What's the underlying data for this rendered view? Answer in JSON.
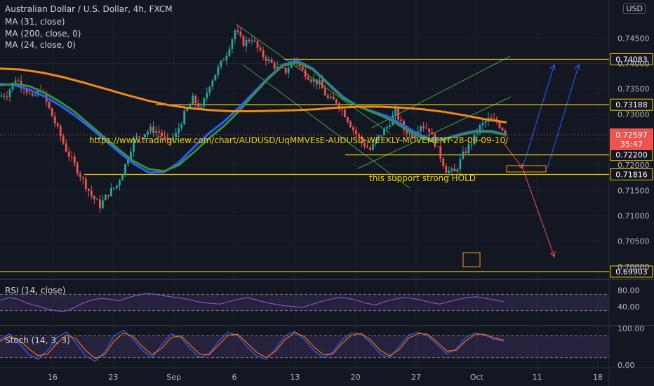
{
  "header": {
    "title": "Australian Dollar / U.S. Dollar, 4h, FXCM",
    "ma_lines": [
      "MA (31, close)",
      "MA (200, close, 0)",
      "MA (24, close, 0)"
    ],
    "currency": "USD"
  },
  "annotations": {
    "url_text": "https://www.tradingview.com/chart/AUDUSD/UqMMVEsE-AUDUSD-WEEKLY-MOVEMENT-28-09-09-10/",
    "support_text": "this support strong HOLD"
  },
  "chart_data": {
    "type": "line",
    "symbol": "AUDUSD",
    "timeframe": "4h",
    "ylim": [
      0.6975,
      0.7525
    ],
    "y_ticks": [
      0.745,
      0.74,
      0.735,
      0.73,
      0.725,
      0.72,
      0.715,
      0.71,
      0.705,
      0.7
    ],
    "x_ticks": [
      "16",
      "23",
      "Sep",
      "6",
      "13",
      "20",
      "27",
      "Oct",
      "11",
      "18"
    ],
    "last_price": 0.72597,
    "countdown": "35:47",
    "levels": [
      {
        "label": "0.74083",
        "value": 0.74083,
        "color": "#f0d000"
      },
      {
        "label": "0.73188",
        "value": 0.73188,
        "color": "#f0d000"
      },
      {
        "label": "0.72200",
        "value": 0.722,
        "color": "#f0d000"
      },
      {
        "label": "0.71816",
        "value": 0.71816,
        "color": "#f0d000"
      },
      {
        "label": "0.69903",
        "value": 0.69903,
        "color": "#f0d000"
      }
    ],
    "price_path": [
      0.7335,
      0.734,
      0.737,
      0.7355,
      0.733,
      0.735,
      0.731,
      0.727,
      0.723,
      0.72,
      0.717,
      0.714,
      0.712,
      0.7145,
      0.716,
      0.72,
      0.725,
      0.726,
      0.727,
      0.7265,
      0.7245,
      0.726,
      0.73,
      0.733,
      0.731,
      0.736,
      0.739,
      0.742,
      0.7465,
      0.744,
      0.745,
      0.742,
      0.7405,
      0.739,
      0.7385,
      0.741,
      0.7385,
      0.737,
      0.736,
      0.733,
      0.7325,
      0.73,
      0.727,
      0.7245,
      0.723,
      0.7255,
      0.7275,
      0.7305,
      0.727,
      0.726,
      0.728,
      0.727,
      0.723,
      0.719,
      0.7185,
      0.722,
      0.7245,
      0.7275,
      0.729,
      0.7285,
      0.7265
    ],
    "ma_series": [
      {
        "name": "MA (31, close)",
        "color": "#2962ff",
        "values": [
          0.736,
          0.7357,
          0.7348,
          0.7335,
          0.7318,
          0.7298,
          0.7275,
          0.725,
          0.7225,
          0.7202,
          0.7185,
          0.7186,
          0.7205,
          0.7235,
          0.7262,
          0.7285,
          0.7312,
          0.7342,
          0.7372,
          0.7398,
          0.7405,
          0.739,
          0.7362,
          0.7335,
          0.7316,
          0.7306,
          0.7296,
          0.728,
          0.7262,
          0.725,
          0.7253,
          0.7262,
          0.7268,
          0.7267,
          0.726
        ]
      },
      {
        "name": "MA (24, close, 0)",
        "color": "#388e3c",
        "values": [
          0.7357,
          0.736,
          0.7355,
          0.7342,
          0.7325,
          0.7305,
          0.728,
          0.7255,
          0.723,
          0.7207,
          0.7192,
          0.7188,
          0.72,
          0.7225,
          0.7252,
          0.7276,
          0.7305,
          0.7338,
          0.737,
          0.7396,
          0.7402,
          0.7388,
          0.736,
          0.7332,
          0.7316,
          0.7304,
          0.7292,
          0.7275,
          0.7258,
          0.7247,
          0.7251,
          0.726,
          0.7266,
          0.7265,
          0.7259
        ]
      },
      {
        "name": "MA (200, close, 0)",
        "color": "#ef8a1a",
        "values": [
          0.739,
          0.7388,
          0.7382,
          0.7373,
          0.7362,
          0.735,
          0.7338,
          0.7327,
          0.7318,
          0.7312,
          0.7308,
          0.7306,
          0.7306,
          0.7307,
          0.7308,
          0.731,
          0.7313,
          0.7315,
          0.7315,
          0.7313,
          0.731,
          0.7305,
          0.7298,
          0.729,
          0.7284
        ]
      }
    ],
    "rsi": {
      "label": "RSI (14, close)",
      "ylim": [
        0,
        100
      ],
      "y_ticks": [
        "80.00",
        "40.00"
      ],
      "bands": [
        70,
        30
      ],
      "color": "#7e57c2",
      "values": [
        55,
        62,
        58,
        48,
        42,
        35,
        30,
        28,
        36,
        48,
        56,
        60,
        58,
        54,
        62,
        68,
        72,
        70,
        66,
        63,
        60,
        55,
        50,
        48,
        46,
        52,
        58,
        62,
        56,
        50,
        46,
        42,
        40,
        38,
        45,
        52,
        58,
        62,
        60,
        55,
        48,
        44,
        52,
        58,
        62,
        60,
        56,
        50,
        46,
        52,
        58,
        62,
        64,
        60,
        56,
        52
      ]
    },
    "stoch": {
      "label": "Stoch (14, 3, 3)",
      "ylim": [
        0,
        100
      ],
      "y_ticks": [
        "100.00",
        "0.00"
      ],
      "bands": [
        80,
        20
      ],
      "k_color": "#2962ff",
      "d_color": "#ff6d00",
      "k": [
        70,
        85,
        60,
        30,
        15,
        40,
        75,
        90,
        60,
        25,
        10,
        35,
        80,
        95,
        70,
        40,
        20,
        55,
        85,
        75,
        45,
        20,
        30,
        65,
        90,
        80,
        50,
        25,
        15,
        45,
        80,
        92,
        70,
        40,
        20,
        35,
        70,
        88,
        85,
        60,
        30,
        20,
        50,
        82,
        90,
        80,
        55,
        30,
        45,
        75,
        88,
        82,
        70,
        65
      ],
      "d": [
        65,
        78,
        70,
        45,
        25,
        30,
        60,
        82,
        72,
        40,
        18,
        28,
        65,
        88,
        78,
        50,
        28,
        45,
        75,
        80,
        55,
        30,
        28,
        55,
        82,
        84,
        60,
        35,
        20,
        38,
        70,
        88,
        78,
        50,
        28,
        30,
        60,
        82,
        86,
        68,
        40,
        25,
        42,
        74,
        86,
        84,
        62,
        38,
        40,
        66,
        84,
        84,
        74,
        68
      ]
    }
  }
}
